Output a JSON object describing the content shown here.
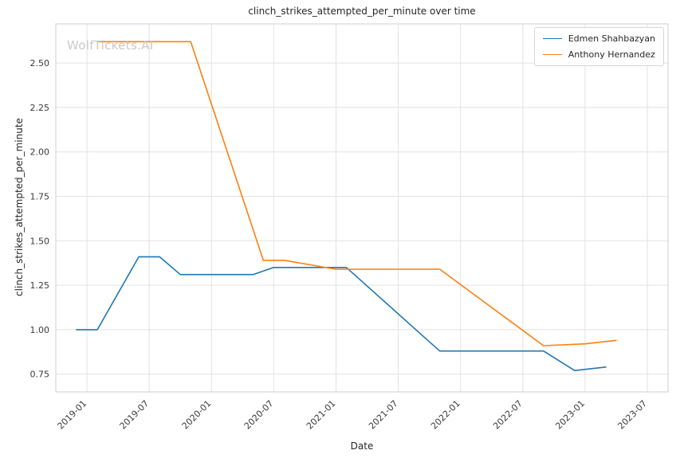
{
  "watermark": "WolfTickets.AI",
  "chart_data": {
    "type": "line",
    "title": "clinch_strikes_attempted_per_minute over time",
    "xlabel": "Date",
    "ylabel": "clinch_strikes_attempted_per_minute",
    "x_ticks": [
      "2019-01",
      "2019-07",
      "2020-01",
      "2020-07",
      "2021-01",
      "2021-07",
      "2022-01",
      "2022-07",
      "2023-01",
      "2023-07"
    ],
    "y_ticks": [
      0.75,
      1.0,
      1.25,
      1.5,
      1.75,
      2.0,
      2.25,
      2.5
    ],
    "xlim": [
      "2018-10",
      "2023-09"
    ],
    "ylim": [
      0.65,
      2.72
    ],
    "grid": true,
    "legend_position": "top-right",
    "series": [
      {
        "name": "Edmen Shahbazyan",
        "color": "#1f77b4",
        "points": [
          [
            "2018-12",
            1.0
          ],
          [
            "2019-02",
            1.0
          ],
          [
            "2019-06",
            1.41
          ],
          [
            "2019-08",
            1.41
          ],
          [
            "2019-10",
            1.31
          ],
          [
            "2020-05",
            1.31
          ],
          [
            "2020-07",
            1.35
          ],
          [
            "2021-02",
            1.35
          ],
          [
            "2021-11",
            0.88
          ],
          [
            "2022-09",
            0.88
          ],
          [
            "2022-12",
            0.77
          ],
          [
            "2023-03",
            0.79
          ]
        ]
      },
      {
        "name": "Anthony Hernandez",
        "color": "#ff7f0e",
        "points": [
          [
            "2019-02",
            2.62
          ],
          [
            "2019-11",
            2.62
          ],
          [
            "2020-06",
            1.39
          ],
          [
            "2020-08",
            1.39
          ],
          [
            "2021-01",
            1.34
          ],
          [
            "2021-11",
            1.34
          ],
          [
            "2022-09",
            0.91
          ],
          [
            "2023-01",
            0.92
          ],
          [
            "2023-04",
            0.94
          ]
        ]
      }
    ]
  }
}
